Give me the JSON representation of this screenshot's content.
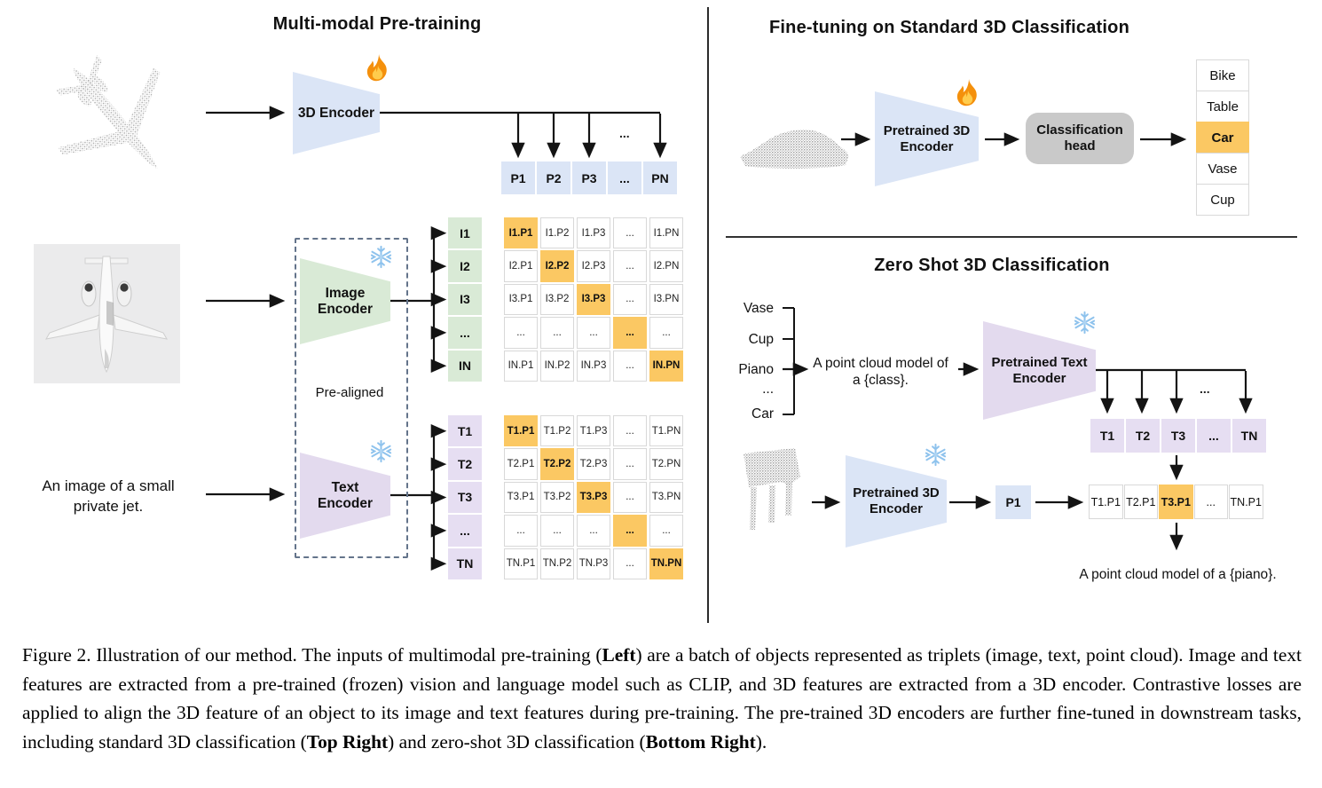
{
  "colors": {
    "blue": "#dbe5f6",
    "green": "#d9ead6",
    "purple": "#e3daee",
    "purplecell": "#e6def2",
    "orange": "#fbc863",
    "grayhead": "#c9c9c9",
    "cellborder": "#d8d8d8"
  },
  "left": {
    "title": "Multi-modal Pre-training",
    "encoder_3d_label": "3D Encoder",
    "p_row": [
      "P1",
      "P2",
      "P3",
      "...",
      "PN"
    ],
    "drop_dots": "...",
    "image_encoder_lines": [
      "Image",
      "Encoder"
    ],
    "text_encoder_lines": [
      "Text",
      "Encoder"
    ],
    "pre_aligned_label": "Pre-aligned",
    "image_caption_lines": [
      "An image of a small",
      "private jet."
    ],
    "i_labels": [
      "I1",
      "I2",
      "I3",
      "...",
      "IN"
    ],
    "t_labels": [
      "T1",
      "T2",
      "T3",
      "...",
      "TN"
    ],
    "diagonal_highlight": true,
    "i_matrix": [
      [
        "I1.P1",
        "I1.P2",
        "I1.P3",
        "...",
        "I1.PN"
      ],
      [
        "I2.P1",
        "I2.P2",
        "I2.P3",
        "...",
        "I2.PN"
      ],
      [
        "I3.P1",
        "I3.P2",
        "I3.P3",
        "...",
        "I3.PN"
      ],
      [
        "...",
        "...",
        "...",
        "...",
        "..."
      ],
      [
        "IN.P1",
        "IN.P2",
        "IN.P3",
        "...",
        "IN.PN"
      ]
    ],
    "t_matrix": [
      [
        "T1.P1",
        "T1.P2",
        "T1.P3",
        "...",
        "T1.PN"
      ],
      [
        "T2.P1",
        "T2.P2",
        "T2.P3",
        "...",
        "T2.PN"
      ],
      [
        "T3.P1",
        "T3.P2",
        "T3.P3",
        "...",
        "T3.PN"
      ],
      [
        "...",
        "...",
        "...",
        "...",
        "..."
      ],
      [
        "TN.P1",
        "TN.P2",
        "TN.P3",
        "...",
        "TN.PN"
      ]
    ]
  },
  "top_right": {
    "title": "Fine-tuning on Standard 3D Classification",
    "encoder_lines": [
      "Pretrained 3D",
      "Encoder"
    ],
    "head_lines": [
      "Classification",
      "head"
    ],
    "classes": [
      "Bike",
      "Table",
      "Car",
      "Vase",
      "Cup"
    ],
    "highlight_index": 2,
    "predicted_class": "Car"
  },
  "bottom_right": {
    "title": "Zero Shot 3D Classification",
    "prompt_classes": [
      "Vase",
      "Cup",
      "Piano",
      "...",
      "Car"
    ],
    "prompt_lines": [
      "A point cloud model of",
      "a {class}."
    ],
    "text_encoder_lines": [
      "Pretrained Text",
      "Encoder"
    ],
    "t_row": [
      "T1",
      "T2",
      "T3",
      "...",
      "TN"
    ],
    "drop_dots": "...",
    "encoder_3d_lines": [
      "Pretrained 3D",
      "Encoder"
    ],
    "p1_label": "P1",
    "result_row": [
      "T1.P1",
      "T2.P1",
      "T3.P1",
      "...",
      "TN.P1"
    ],
    "result_highlight_index": 2,
    "output_text": "A point cloud model of a {piano}."
  },
  "caption": {
    "segments": [
      {
        "text": "Figure 2. Illustration of our method. The inputs of multimodal pre-training (",
        "bold": false
      },
      {
        "text": "Left",
        "bold": true
      },
      {
        "text": ") are a batch of objects represented as triplets (image, text, point cloud). Image and text features are extracted from a pre-trained (frozen) vision and language model such as CLIP, and 3D features are extracted from a 3D encoder. Contrastive losses are applied to align the 3D feature of an object to its image and text features during pre-training. The pre-trained 3D encoders are further fine-tuned in downstream tasks, including standard 3D classification (",
        "bold": false
      },
      {
        "text": "Top Right",
        "bold": true
      },
      {
        "text": ") and zero-shot 3D classification (",
        "bold": false
      },
      {
        "text": "Bottom Right",
        "bold": true
      },
      {
        "text": ").",
        "bold": false
      }
    ]
  }
}
